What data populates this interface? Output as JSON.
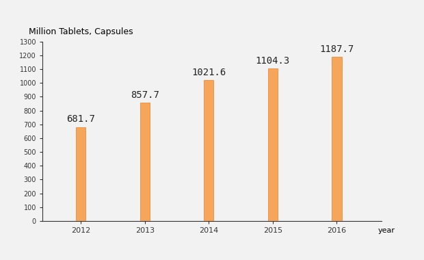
{
  "chart_data": {
    "type": "bar",
    "y_label": "Million Tablets, Capsules",
    "x_label": "year",
    "categories": [
      "2012",
      "2013",
      "2014",
      "2015",
      "2016"
    ],
    "values": [
      681.7,
      857.7,
      1021.6,
      1104.3,
      1187.7
    ],
    "color": "#f5a65b",
    "ylim": [
      0,
      1300
    ],
    "yticks": [
      0,
      100,
      200,
      300,
      400,
      500,
      600,
      700,
      800,
      900,
      1000,
      1100,
      1200,
      1300
    ],
    "data_labels": true,
    "grid": false
  }
}
